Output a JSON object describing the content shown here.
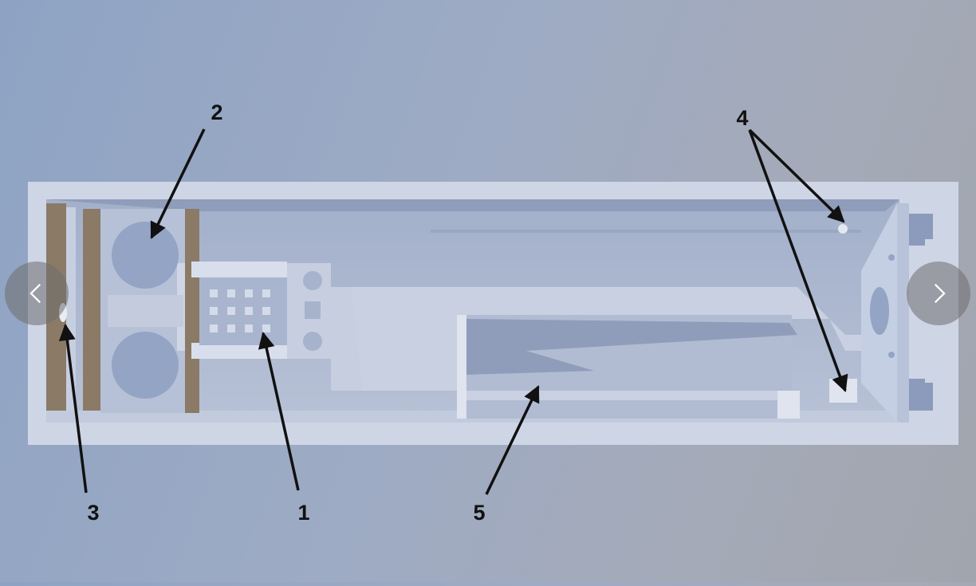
{
  "diagram": {
    "callouts": [
      "1",
      "2",
      "3",
      "4",
      "5"
    ]
  },
  "colors": {
    "body_light": "#cfd6e6",
    "body_mid": "#aebad2",
    "body_shadow": "#7f8cab",
    "wood": "#8a7a66",
    "arrow": "#111111"
  },
  "carousel": {
    "prev_icon": "chevron-left-icon",
    "next_icon": "chevron-right-icon"
  }
}
